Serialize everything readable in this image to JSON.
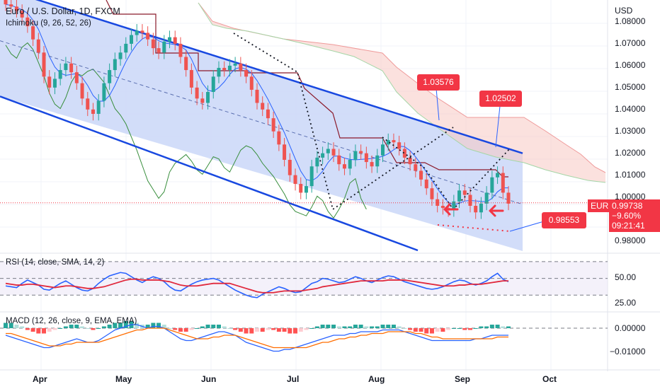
{
  "header": {
    "title": "Euro / U.S. Dollar, 1D, FXCM",
    "indicator": "Ichimoku (9, 26, 52, 26)"
  },
  "price_axis": {
    "currency": "USD",
    "ticks": [
      "1.08000",
      "1.07000",
      "1.06000",
      "1.05000",
      "1.04000",
      "1.03000",
      "1.02000",
      "1.01000",
      "1.00000",
      "0.98000"
    ]
  },
  "last_price": {
    "symbol": "EURUSD",
    "price": "0.99738",
    "change": "−9.60%",
    "countdown": "09:21:41"
  },
  "annotations": {
    "level_a": "1.03576",
    "level_b": "1.02502",
    "level_c": "0.98553"
  },
  "rsi": {
    "label": "RSI (14, close, SMA, 14, 2)",
    "ticks": [
      "50.00",
      "25.00"
    ]
  },
  "macd": {
    "label": "MACD (12, 26, close, 9, EMA, EMA)",
    "ticks": [
      "0.00000",
      "−0.01000"
    ]
  },
  "time_axis": [
    "Apr",
    "May",
    "Jun",
    "Jul",
    "Aug",
    "Sep",
    "Oct"
  ],
  "colors": {
    "up": "#26a69a",
    "down": "#ef5350",
    "channel": "#1848e0",
    "kumo": "#f7c9c3",
    "channel_fill": "#cdd9f8"
  },
  "chart_data": {
    "type": "candlestick",
    "y_range": [
      0.975,
      1.09
    ],
    "channel": {
      "upper": [
        [
          1.091,
          1.02
        ]
      ],
      "lower": [
        [
          1.055,
          0.985
        ]
      ]
    },
    "price_path": [
      1.088,
      1.087,
      1.085,
      1.082,
      1.078,
      1.072,
      1.066,
      1.055,
      1.05,
      1.054,
      1.058,
      1.061,
      1.057,
      1.052,
      1.045,
      1.04,
      1.038,
      1.044,
      1.052,
      1.058,
      1.063,
      1.066,
      1.07,
      1.074,
      1.076,
      1.075,
      1.072,
      1.068,
      1.066,
      1.071,
      1.073,
      1.07,
      1.064,
      1.058,
      1.05,
      1.045,
      1.043,
      1.048,
      1.055,
      1.059,
      1.058,
      1.06,
      1.061,
      1.058,
      1.055,
      1.049,
      1.043,
      1.04,
      1.036,
      1.03,
      1.024,
      1.017,
      1.01,
      1.006,
      1.002,
      1.005,
      1.014,
      1.018,
      1.02,
      1.022,
      1.019,
      1.015,
      1.013,
      1.017,
      1.021,
      1.02,
      1.016,
      1.014,
      1.019,
      1.024,
      1.026,
      1.025,
      1.022,
      1.018,
      1.015,
      1.012,
      1.008,
      1.004,
      0.999,
      0.996,
      0.995,
      0.994,
      0.998,
      1.003,
      1.001,
      0.996,
      0.993,
      0.997,
      1.002,
      1.009,
      1.011,
      1.002,
      0.997
    ],
    "rsi": [
      41,
      40,
      39,
      44,
      48,
      45,
      42,
      37,
      36,
      40,
      44,
      47,
      43,
      39,
      36,
      35,
      38,
      44,
      49,
      53,
      55,
      57,
      56,
      52,
      48,
      45,
      49,
      52,
      50,
      46,
      40,
      36,
      35,
      39,
      43,
      46,
      48,
      49,
      50,
      48,
      44,
      40,
      36,
      33,
      30,
      28,
      27,
      31,
      34,
      37,
      40,
      38,
      35,
      33,
      34,
      39,
      44,
      46,
      50,
      49,
      47,
      45,
      46,
      49,
      52,
      50,
      47,
      45,
      48,
      51,
      53,
      52,
      49,
      46,
      44,
      42,
      40,
      38,
      37,
      38,
      40,
      43,
      46,
      48,
      47,
      44,
      42,
      44,
      47,
      52,
      56,
      49,
      46
    ],
    "rsi_sma": [
      44,
      43,
      42,
      42,
      43,
      43,
      42,
      41,
      40,
      39,
      40,
      41,
      41,
      40,
      39,
      38,
      38,
      39,
      40,
      42,
      44,
      46,
      48,
      49,
      49,
      48,
      48,
      48,
      48,
      47,
      46,
      44,
      42,
      41,
      41,
      41,
      42,
      43,
      44,
      44,
      44,
      44,
      42,
      40,
      38,
      36,
      34,
      33,
      33,
      33,
      34,
      35,
      35,
      35,
      35,
      36,
      37,
      38,
      40,
      41,
      42,
      43,
      44,
      45,
      46,
      47,
      47,
      47,
      47,
      47,
      48,
      48,
      48,
      48,
      47,
      46,
      45,
      44,
      43,
      42,
      41,
      41,
      41,
      42,
      42,
      43,
      43,
      43,
      44,
      45,
      46,
      47,
      47
    ],
    "macd_hist": [
      0.003,
      0.003,
      0.002,
      0.001,
      -0.001,
      -0.002,
      -0.003,
      -0.003,
      -0.002,
      -0.001,
      0.0,
      0.001,
      0.002,
      0.002,
      0.001,
      0.0,
      -0.001,
      0.0,
      0.001,
      0.002,
      0.003,
      0.003,
      0.004,
      0.004,
      0.003,
      0.002,
      0.002,
      0.003,
      0.003,
      0.002,
      0.0,
      -0.001,
      -0.002,
      -0.002,
      -0.001,
      0.0,
      0.001,
      0.002,
      0.002,
      0.002,
      0.001,
      0.0,
      -0.001,
      -0.002,
      -0.003,
      -0.003,
      -0.002,
      -0.002,
      -0.001,
      -0.001,
      -0.002,
      -0.002,
      -0.003,
      -0.003,
      -0.002,
      -0.001,
      0.0,
      0.001,
      0.002,
      0.002,
      0.002,
      0.001,
      0.001,
      0.001,
      0.002,
      0.002,
      0.001,
      0.001,
      0.001,
      0.002,
      0.002,
      0.002,
      0.001,
      0.0,
      -0.001,
      -0.002,
      -0.002,
      -0.003,
      -0.003,
      -0.002,
      -0.002,
      -0.001,
      0.0,
      0.0,
      -0.001,
      -0.001,
      0.0,
      0.001,
      0.001,
      0.002,
      0.002,
      0.001,
      0.001
    ],
    "macd_line": [
      -0.004,
      -0.005,
      -0.006,
      -0.007,
      -0.008,
      -0.009,
      -0.01,
      -0.011,
      -0.011,
      -0.01,
      -0.009,
      -0.008,
      -0.007,
      -0.006,
      -0.007,
      -0.008,
      -0.008,
      -0.007,
      -0.005,
      -0.003,
      -0.001,
      0.0,
      0.001,
      0.002,
      0.002,
      0.001,
      0.0,
      0.001,
      0.001,
      0.0,
      -0.002,
      -0.004,
      -0.006,
      -0.007,
      -0.007,
      -0.006,
      -0.005,
      -0.004,
      -0.003,
      -0.002,
      -0.002,
      -0.003,
      -0.004,
      -0.006,
      -0.008,
      -0.009,
      -0.01,
      -0.011,
      -0.012,
      -0.013,
      -0.013,
      -0.012,
      -0.012,
      -0.011,
      -0.01,
      -0.009,
      -0.008,
      -0.007,
      -0.006,
      -0.005,
      -0.004,
      -0.004,
      -0.004,
      -0.003,
      -0.003,
      -0.002,
      -0.002,
      -0.002,
      -0.002,
      -0.001,
      -0.001,
      -0.001,
      -0.001,
      -0.002,
      -0.003,
      -0.004,
      -0.005,
      -0.006,
      -0.007,
      -0.007,
      -0.007,
      -0.007,
      -0.007,
      -0.007,
      -0.007,
      -0.007,
      -0.006,
      -0.006,
      -0.005,
      -0.004,
      -0.004,
      -0.004,
      -0.004
    ],
    "macd_signal": [
      -0.003,
      -0.003,
      -0.004,
      -0.005,
      -0.006,
      -0.007,
      -0.008,
      -0.009,
      -0.01,
      -0.01,
      -0.01,
      -0.009,
      -0.009,
      -0.008,
      -0.008,
      -0.008,
      -0.008,
      -0.008,
      -0.007,
      -0.006,
      -0.005,
      -0.004,
      -0.003,
      -0.002,
      -0.001,
      -0.001,
      0.0,
      0.0,
      0.0,
      0.0,
      -0.001,
      -0.002,
      -0.003,
      -0.004,
      -0.005,
      -0.006,
      -0.006,
      -0.006,
      -0.005,
      -0.005,
      -0.004,
      -0.004,
      -0.004,
      -0.005,
      -0.006,
      -0.007,
      -0.008,
      -0.009,
      -0.01,
      -0.011,
      -0.011,
      -0.011,
      -0.011,
      -0.011,
      -0.011,
      -0.011,
      -0.01,
      -0.009,
      -0.008,
      -0.008,
      -0.007,
      -0.006,
      -0.006,
      -0.005,
      -0.005,
      -0.004,
      -0.004,
      -0.003,
      -0.003,
      -0.003,
      -0.002,
      -0.002,
      -0.002,
      -0.002,
      -0.002,
      -0.003,
      -0.003,
      -0.004,
      -0.005,
      -0.005,
      -0.006,
      -0.006,
      -0.006,
      -0.006,
      -0.006,
      -0.006,
      -0.006,
      -0.006,
      -0.006,
      -0.006,
      -0.005,
      -0.005,
      -0.005
    ]
  }
}
